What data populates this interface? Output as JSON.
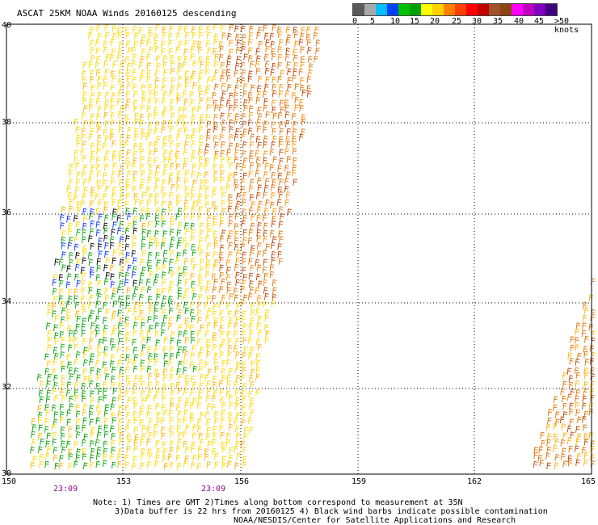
{
  "title": "ASCAT 25KM NOAA Winds 20160125 descending",
  "colorbar": {
    "colors": [
      "#5a5a5a",
      "#a8a8a8",
      "#00bfff",
      "#0040ff",
      "#00c000",
      "#00a000",
      "#ffff00",
      "#ffd000",
      "#ff8000",
      "#ff4000",
      "#ff0000",
      "#c00000",
      "#a0522d",
      "#8b4513",
      "#ff00ff",
      "#c000c0",
      "#8000c0",
      "#400080"
    ],
    "labels": [
      "0",
      "5",
      "10",
      "15",
      "20",
      "25",
      "30",
      "35",
      "40",
      "45",
      ">50 knots"
    ]
  },
  "axes": {
    "lat_labels": [
      "40",
      "38",
      "36",
      "34",
      "32",
      "30"
    ],
    "lon_labels": [
      "150",
      "153",
      "156",
      "159",
      "162",
      "165"
    ]
  },
  "times": [
    "23:09",
    "23:09"
  ],
  "notes": {
    "line1": "Note: 1) Times are GMT 2)Times along bottom correspond to measurement at 35N",
    "line2": "3)Data buffer is 22 hrs from 20160125 4) Black wind barbs indicate possible contamination",
    "line3": "NOAA/NESDIS/Center for Satellite Applications and Research"
  }
}
